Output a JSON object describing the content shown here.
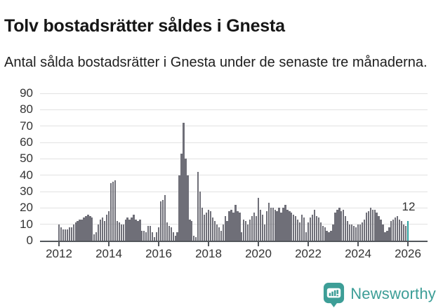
{
  "header": {
    "title": "Tolv bostadsrätter såldes i Gnesta",
    "subtitle": "Antal sålda bostadsrätter i Gnesta under de senaste tre månaderna."
  },
  "footer": {
    "brand": "Newsworthy"
  },
  "colors": {
    "bar": "#6f6f78",
    "highlight": "#2aa2a0",
    "grid": "#e2e2e2",
    "axis": "#53575c",
    "tick_text": "#333333",
    "brand": "#3d9e97"
  },
  "chart_data": {
    "type": "bar",
    "title": "Tolv bostadsrätter såldes i Gnesta",
    "subtitle": "Antal sålda bostadsrätter i Gnesta under de senaste tre månaderna.",
    "unit": "sålda bostadsrätter per månad (rullande tre månader)",
    "x_start": "2012-01",
    "x_end": "2026-01",
    "frequency": "monthly",
    "ylim": [
      0,
      90
    ],
    "yticks": [
      0,
      10,
      20,
      30,
      40,
      50,
      60,
      70,
      80,
      90
    ],
    "xticks": [
      2012,
      2014,
      2016,
      2018,
      2020,
      2022,
      2024,
      2026
    ],
    "grid": "horizontal",
    "legend": "none",
    "highlight_last": true,
    "annotation": {
      "text": "12",
      "value": 12,
      "x": "2026-01"
    },
    "values": [
      10,
      8,
      7,
      7,
      7,
      8,
      8,
      10,
      11,
      12,
      13,
      13,
      14,
      15,
      16,
      15,
      14,
      4,
      5,
      10,
      13,
      14,
      12,
      16,
      18,
      35,
      36,
      37,
      12,
      11,
      10,
      10,
      13,
      14,
      13,
      14,
      16,
      13,
      12,
      13,
      6,
      6,
      5,
      9,
      9,
      5,
      2,
      5,
      8,
      24,
      25,
      28,
      11,
      9,
      8,
      5,
      3,
      5,
      40,
      53,
      72,
      50,
      40,
      13,
      12,
      3,
      2,
      42,
      30,
      20,
      16,
      17,
      19,
      18,
      14,
      12,
      10,
      8,
      6,
      10,
      15,
      12,
      18,
      19,
      17,
      22,
      18,
      17,
      5,
      13,
      12,
      10,
      13,
      15,
      17,
      15,
      26,
      19,
      16,
      10,
      18,
      23,
      20,
      20,
      19,
      18,
      20,
      17,
      20,
      22,
      19,
      18,
      17,
      16,
      15,
      13,
      11,
      16,
      14,
      5,
      11,
      14,
      16,
      19,
      15,
      14,
      11,
      9,
      8,
      6,
      5,
      6,
      10,
      17,
      19,
      20,
      18,
      19,
      15,
      12,
      10,
      10,
      9,
      8,
      10,
      10,
      11,
      13,
      17,
      18,
      20,
      19,
      19,
      17,
      15,
      13,
      10,
      5,
      6,
      8,
      12,
      13,
      14,
      15,
      13,
      12,
      10,
      9,
      12
    ]
  }
}
